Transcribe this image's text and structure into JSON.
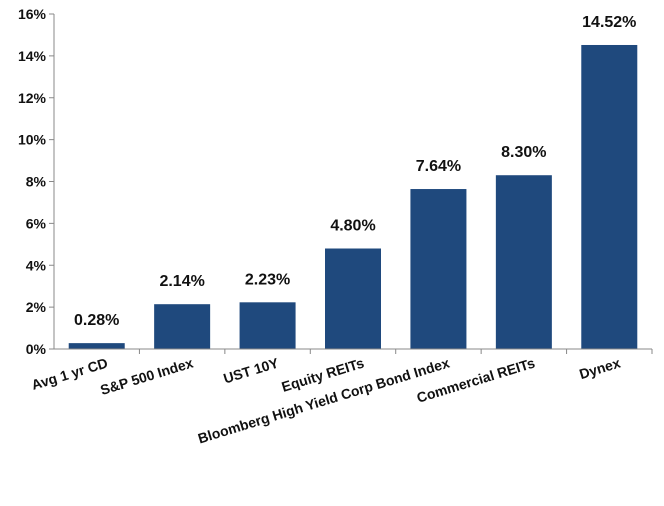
{
  "chart_data": {
    "type": "bar",
    "categories": [
      "Avg 1 yr CD",
      "S&P 500 Index",
      "UST 10Y",
      "Equity REITs",
      "Bloomberg High Yield Corp Bond Index",
      "Commercial REITs",
      "Dynex"
    ],
    "values": [
      0.28,
      2.14,
      2.23,
      4.8,
      7.64,
      8.3,
      14.52
    ],
    "data_labels": [
      "0.28%",
      "2.14%",
      "2.23%",
      "4.80%",
      "7.64%",
      "8.30%",
      "14.52%"
    ],
    "yticks": [
      0,
      2,
      4,
      6,
      8,
      10,
      12,
      14,
      16
    ],
    "ytick_labels": [
      "0%",
      "2%",
      "4%",
      "6%",
      "8%",
      "10%",
      "12%",
      "14%",
      "16%"
    ],
    "ylim": [
      0,
      16
    ],
    "grid": false,
    "legend": "none",
    "colors": {
      "bar": "#1f497d",
      "axis": "#888888",
      "text": "#111111"
    }
  }
}
